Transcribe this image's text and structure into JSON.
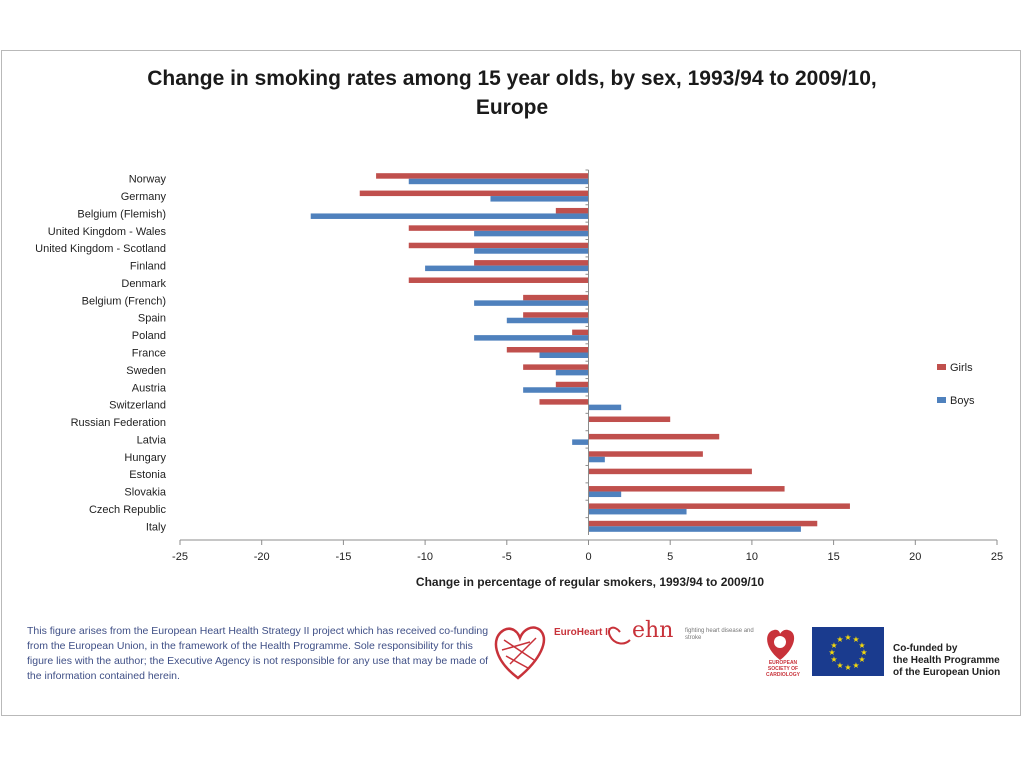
{
  "chart_data": {
    "type": "bar",
    "orientation": "horizontal",
    "title": "Change in smoking rates among 15 year olds, by sex, 1993/94 to 2009/10, Europe",
    "title_lines": [
      "Change in smoking rates among 15 year olds, by sex, 1993/94 to 2009/10,",
      "Europe"
    ],
    "xlabel": "Change in percentage of regular smokers, 1993/94 to 2009/10",
    "ylabel": "",
    "xlim": [
      -25,
      25
    ],
    "xticks": [
      -25,
      -20,
      -15,
      -10,
      -5,
      0,
      5,
      10,
      15,
      20,
      25
    ],
    "grid": false,
    "legend_position": "right",
    "categories": [
      "Norway",
      "Germany",
      "Belgium (Flemish)",
      "United Kingdom - Wales",
      "United Kingdom - Scotland",
      "Finland",
      "Denmark",
      "Belgium (French)",
      "Spain",
      "Poland",
      "France",
      "Sweden",
      "Austria",
      "Switzerland",
      "Russian Federation",
      "Latvia",
      "Hungary",
      "Estonia",
      "Slovakia",
      "Czech Republic",
      "Italy"
    ],
    "series": [
      {
        "name": "Girls",
        "color": "#c0504d",
        "values": [
          -13,
          -14,
          -2,
          -11,
          -11,
          -7,
          -11,
          -4,
          -4,
          -1,
          -5,
          -4,
          -2,
          -3,
          5,
          8,
          7,
          10,
          12,
          16,
          14
        ]
      },
      {
        "name": "Boys",
        "color": "#4f81bd",
        "values": [
          -11,
          -6,
          -17,
          -7,
          -7,
          -10,
          0,
          -7,
          -5,
          -7,
          -3,
          -2,
          -4,
          2,
          0,
          -1,
          1,
          0,
          2,
          6,
          13
        ]
      }
    ]
  },
  "footer": {
    "note": "This figure arises from the European Heart Health Strategy II project which has received co-funding from the European Union, in the framework of the Health Programme. Sole responsibility for this figure lies with the author; the Executive Agency is not responsible for any use that may be made of the information contained herein.",
    "euroheart": "EuroHeart II",
    "ehn": "ehn",
    "ehn_tagline": "fighting heart disease and stroke",
    "esc": "EUROPEAN SOCIETY OF CARDIOLOGY",
    "cofunded": [
      "Co-funded by",
      "the Health Programme",
      "of the European Union"
    ]
  }
}
